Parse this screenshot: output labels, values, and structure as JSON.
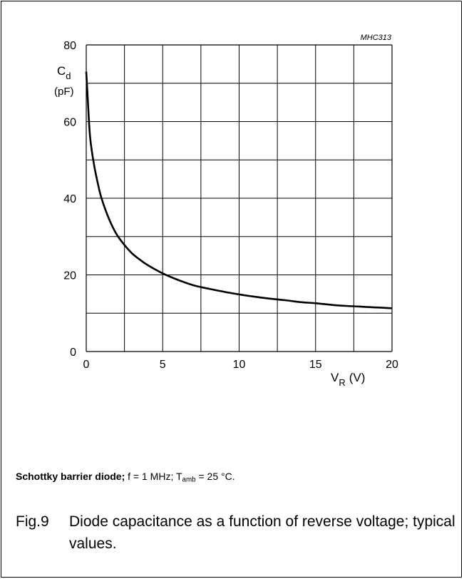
{
  "chart_data": {
    "type": "line",
    "code": "MHC313",
    "xlabel": "V",
    "xlabel_sub": "R",
    "xlabel_unit": "(V)",
    "ylabel": "C",
    "ylabel_sub": "d",
    "ylabel_unit": "(pF)",
    "xlim": [
      0,
      20
    ],
    "ylim": [
      0,
      80
    ],
    "x_ticks": [
      0,
      5,
      10,
      15,
      20
    ],
    "y_ticks": [
      0,
      20,
      40,
      60,
      80
    ],
    "x_grid": [
      0,
      2.5,
      5,
      7.5,
      10,
      12.5,
      15,
      17.5,
      20
    ],
    "y_grid": [
      0,
      10,
      20,
      30,
      40,
      50,
      60,
      70,
      80
    ],
    "grid": true,
    "series": [
      {
        "x": [
          0,
          0.1,
          0.25,
          0.5,
          0.75,
          1,
          1.5,
          2,
          2.5,
          3,
          3.5,
          4,
          5,
          6,
          7,
          8,
          9,
          10,
          11,
          12,
          13,
          14,
          15,
          16,
          17,
          18,
          19,
          20
        ],
        "y": [
          73,
          66,
          56,
          49,
          44,
          40,
          34.5,
          30.5,
          27.8,
          25.6,
          24,
          22.6,
          20.4,
          18.7,
          17.3,
          16.4,
          15.6,
          14.9,
          14.3,
          13.8,
          13.4,
          12.9,
          12.6,
          12.2,
          11.9,
          11.7,
          11.5,
          11.3
        ]
      }
    ]
  },
  "caption": {
    "bold": "Schottky barrier diode;",
    "pre_sub": " f = 1 MHz; T",
    "sub": "amb",
    "post_sub": " = 25 °C."
  },
  "figure": {
    "number": "Fig.9",
    "text": "Diode capacitance as a function of reverse voltage; typical values."
  }
}
